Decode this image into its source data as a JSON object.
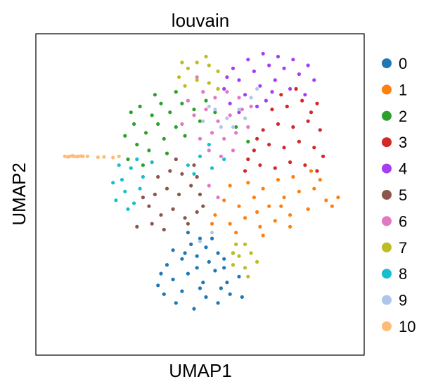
{
  "chart_data": {
    "type": "scatter",
    "title": "louvain",
    "xlabel": "UMAP1",
    "ylabel": "UMAP2",
    "xlim": [
      0,
      10
    ],
    "ylim": [
      0,
      10
    ],
    "grid": false,
    "show_ticks": false,
    "legend_position": "right",
    "series": [
      {
        "name": "0",
        "color": "#1f77b4",
        "points": [
          [
            3.8,
            1.6
          ],
          [
            4.2,
            1.3
          ],
          [
            4.8,
            1.1
          ],
          [
            5.2,
            1.5
          ],
          [
            5.6,
            1.3
          ],
          [
            6.0,
            1.6
          ],
          [
            3.6,
            1.9
          ],
          [
            4.1,
            2.1
          ],
          [
            4.6,
            2.3
          ],
          [
            5.1,
            2.0
          ],
          [
            5.5,
            2.4
          ],
          [
            5.9,
            2.0
          ],
          [
            6.3,
            2.2
          ],
          [
            3.9,
            2.6
          ],
          [
            4.4,
            2.8
          ],
          [
            4.9,
            2.9
          ],
          [
            5.3,
            2.7
          ],
          [
            5.8,
            2.8
          ],
          [
            4.1,
            3.1
          ],
          [
            4.7,
            3.3
          ],
          [
            5.2,
            3.2
          ],
          [
            5.6,
            3.0
          ],
          [
            6.1,
            3.0
          ],
          [
            4.4,
            1.7
          ],
          [
            5.0,
            1.8
          ],
          [
            5.7,
            1.8
          ],
          [
            4.9,
            2.5
          ],
          [
            4.5,
            3.0
          ],
          [
            5.4,
            3.5
          ],
          [
            5.0,
            3.5
          ],
          [
            4.6,
            3.7
          ],
          [
            5.8,
            2.5
          ],
          [
            3.7,
            2.3
          ],
          [
            6.4,
            1.5
          ]
        ]
      },
      {
        "name": "1",
        "color": "#ff7f0e",
        "points": [
          [
            5.5,
            4.3
          ],
          [
            6.0,
            4.0
          ],
          [
            6.5,
            4.2
          ],
          [
            7.0,
            3.9
          ],
          [
            7.5,
            4.1
          ],
          [
            8.0,
            4.3
          ],
          [
            8.6,
            4.5
          ],
          [
            9.2,
            4.8
          ],
          [
            5.8,
            4.8
          ],
          [
            6.3,
            4.6
          ],
          [
            6.8,
            4.9
          ],
          [
            7.3,
            4.6
          ],
          [
            7.8,
            4.9
          ],
          [
            8.3,
            5.1
          ],
          [
            8.8,
            5.2
          ],
          [
            9.4,
            4.6
          ],
          [
            6.0,
            5.3
          ],
          [
            6.6,
            5.4
          ],
          [
            7.1,
            5.2
          ],
          [
            7.6,
            5.5
          ],
          [
            8.1,
            5.6
          ],
          [
            8.7,
            5.8
          ],
          [
            9.0,
            5.5
          ],
          [
            5.4,
            4.0
          ],
          [
            6.2,
            3.7
          ],
          [
            7.1,
            3.6
          ],
          [
            8.0,
            3.9
          ],
          [
            9.6,
            4.9
          ],
          [
            6.9,
            4.4
          ],
          [
            7.7,
            4.6
          ]
        ]
      },
      {
        "name": "2",
        "color": "#2ca02c",
        "points": [
          [
            2.6,
            6.2
          ],
          [
            2.9,
            6.7
          ],
          [
            3.2,
            7.1
          ],
          [
            2.8,
            7.4
          ],
          [
            3.4,
            7.7
          ],
          [
            3.0,
            8.0
          ],
          [
            3.7,
            8.1
          ],
          [
            3.3,
            6.5
          ],
          [
            3.8,
            6.9
          ],
          [
            4.2,
            7.3
          ],
          [
            3.6,
            7.4
          ],
          [
            4.0,
            7.8
          ],
          [
            4.4,
            8.1
          ],
          [
            4.8,
            7.9
          ],
          [
            5.2,
            8.2
          ],
          [
            5.5,
            7.8
          ],
          [
            2.5,
            7.0
          ],
          [
            3.1,
            6.0
          ],
          [
            4.5,
            7.0
          ],
          [
            5.0,
            7.5
          ],
          [
            3.5,
            8.4
          ],
          [
            4.2,
            8.5
          ],
          [
            6.6,
            6.8
          ],
          [
            6.2,
            7.3
          ],
          [
            2.7,
            7.8
          ],
          [
            3.9,
            6.4
          ]
        ]
      },
      {
        "name": "3",
        "color": "#d62728",
        "points": [
          [
            6.5,
            5.8
          ],
          [
            7.0,
            6.0
          ],
          [
            7.5,
            5.9
          ],
          [
            8.0,
            6.1
          ],
          [
            8.5,
            6.0
          ],
          [
            8.9,
            5.8
          ],
          [
            6.8,
            6.5
          ],
          [
            7.3,
            6.7
          ],
          [
            7.8,
            6.6
          ],
          [
            8.3,
            6.8
          ],
          [
            8.8,
            6.6
          ],
          [
            7.1,
            7.2
          ],
          [
            7.6,
            7.4
          ],
          [
            8.1,
            7.3
          ],
          [
            8.6,
            7.5
          ],
          [
            9.0,
            7.2
          ],
          [
            7.4,
            7.9
          ],
          [
            7.9,
            8.0
          ],
          [
            8.4,
            8.2
          ],
          [
            8.7,
            7.8
          ],
          [
            6.6,
            6.2
          ],
          [
            9.1,
            6.3
          ],
          [
            7.7,
            8.4
          ],
          [
            8.2,
            8.6
          ],
          [
            8.9,
            8.1
          ],
          [
            6.9,
            6.9
          ]
        ]
      },
      {
        "name": "4",
        "color": "#a53ef2",
        "points": [
          [
            5.8,
            8.6
          ],
          [
            6.3,
            8.9
          ],
          [
            6.8,
            9.2
          ],
          [
            7.3,
            9.4
          ],
          [
            7.8,
            9.3
          ],
          [
            8.3,
            9.1
          ],
          [
            8.8,
            8.9
          ],
          [
            6.1,
            9.3
          ],
          [
            6.6,
            9.6
          ],
          [
            7.1,
            9.8
          ],
          [
            7.6,
            9.7
          ],
          [
            8.1,
            9.6
          ],
          [
            8.6,
            9.4
          ],
          [
            6.0,
            8.1
          ],
          [
            6.5,
            8.4
          ],
          [
            7.0,
            8.7
          ],
          [
            7.5,
            8.9
          ],
          [
            8.0,
            8.6
          ],
          [
            8.5,
            8.4
          ],
          [
            6.3,
            7.8
          ],
          [
            7.2,
            8.2
          ],
          [
            5.9,
            9.0
          ],
          [
            7.4,
            8.5
          ],
          [
            6.9,
            8.0
          ]
        ]
      },
      {
        "name": "5",
        "color": "#8c564b",
        "points": [
          [
            3.3,
            4.6
          ],
          [
            3.7,
            4.3
          ],
          [
            4.1,
            4.5
          ],
          [
            4.5,
            4.2
          ],
          [
            4.9,
            4.4
          ],
          [
            3.5,
            5.0
          ],
          [
            3.9,
            5.2
          ],
          [
            4.3,
            5.0
          ],
          [
            4.7,
            5.3
          ],
          [
            5.0,
            5.0
          ],
          [
            3.6,
            5.6
          ],
          [
            4.0,
            5.8
          ],
          [
            4.4,
            5.7
          ],
          [
            4.8,
            6.0
          ],
          [
            3.1,
            4.9
          ],
          [
            2.9,
            3.9
          ],
          [
            3.4,
            4.0
          ],
          [
            4.6,
            4.0
          ],
          [
            5.1,
            4.6
          ],
          [
            4.2,
            6.2
          ],
          [
            3.8,
            3.8
          ],
          [
            4.9,
            5.6
          ]
        ]
      },
      {
        "name": "6",
        "color": "#e377c2",
        "points": [
          [
            4.4,
            7.4
          ],
          [
            4.8,
            7.7
          ],
          [
            5.2,
            7.9
          ],
          [
            5.6,
            7.5
          ],
          [
            6.0,
            7.7
          ],
          [
            6.4,
            7.9
          ],
          [
            4.6,
            8.2
          ],
          [
            5.1,
            8.5
          ],
          [
            5.5,
            8.3
          ],
          [
            5.9,
            8.5
          ],
          [
            6.3,
            8.3
          ],
          [
            6.7,
            8.0
          ],
          [
            5.0,
            6.9
          ],
          [
            5.4,
            7.1
          ],
          [
            5.8,
            6.9
          ],
          [
            6.2,
            7.1
          ],
          [
            6.6,
            7.3
          ],
          [
            5.3,
            6.5
          ],
          [
            5.7,
            6.3
          ],
          [
            6.1,
            6.5
          ],
          [
            4.9,
            9.0
          ],
          [
            5.6,
            4.9
          ],
          [
            5.3,
            5.3
          ]
        ]
      },
      {
        "name": "7",
        "color": "#bcbd22",
        "points": [
          [
            4.3,
            9.0
          ],
          [
            4.6,
            9.3
          ],
          [
            4.9,
            9.5
          ],
          [
            5.3,
            9.4
          ],
          [
            5.6,
            9.2
          ],
          [
            4.5,
            8.7
          ],
          [
            4.9,
            8.9
          ],
          [
            5.3,
            8.8
          ],
          [
            5.6,
            8.6
          ],
          [
            5.2,
            9.7
          ],
          [
            4.4,
            9.5
          ],
          [
            6.1,
            2.6
          ],
          [
            6.5,
            2.5
          ],
          [
            6.9,
            2.7
          ],
          [
            6.3,
            2.9
          ],
          [
            6.7,
            3.0
          ],
          [
            6.5,
            3.3
          ],
          [
            6.1,
            3.0
          ],
          [
            6.2,
            3.3
          ],
          [
            6.6,
            2.2
          ]
        ]
      },
      {
        "name": "8",
        "color": "#17becf",
        "points": [
          [
            2.2,
            4.8
          ],
          [
            2.5,
            5.1
          ],
          [
            2.8,
            4.7
          ],
          [
            2.4,
            5.5
          ],
          [
            2.7,
            5.9
          ],
          [
            3.1,
            5.6
          ],
          [
            2.3,
            6.0
          ],
          [
            2.6,
            4.5
          ],
          [
            3.0,
            5.2
          ],
          [
            2.1,
            5.4
          ],
          [
            4.6,
            6.0
          ],
          [
            5.0,
            6.3
          ],
          [
            5.4,
            5.9
          ],
          [
            5.8,
            6.2
          ],
          [
            4.8,
            5.7
          ],
          [
            5.3,
            6.7
          ],
          [
            3.4,
            6.1
          ],
          [
            2.9,
            6.2
          ]
        ]
      },
      {
        "name": "9",
        "color": "#aec7e8",
        "points": [
          [
            5.1,
            7.5
          ],
          [
            5.5,
            7.9
          ],
          [
            5.9,
            7.6
          ],
          [
            6.3,
            7.9
          ],
          [
            6.7,
            8.3
          ],
          [
            5.3,
            8.0
          ],
          [
            5.7,
            7.3
          ],
          [
            6.1,
            7.3
          ],
          [
            6.5,
            7.6
          ],
          [
            6.9,
            8.6
          ],
          [
            5.0,
            3.4
          ],
          [
            5.4,
            3.7
          ]
        ]
      },
      {
        "name": "10",
        "color": "#ffbb78",
        "points": [
          [
            0.5,
            6.3
          ],
          [
            0.65,
            6.3
          ],
          [
            0.8,
            6.3
          ],
          [
            0.95,
            6.3
          ],
          [
            1.1,
            6.3
          ],
          [
            1.25,
            6.3
          ],
          [
            0.6,
            6.28
          ],
          [
            0.75,
            6.32
          ],
          [
            0.9,
            6.29
          ],
          [
            1.05,
            6.31
          ],
          [
            1.6,
            6.27
          ],
          [
            1.8,
            6.28
          ],
          [
            2.1,
            6.26
          ],
          [
            2.3,
            6.3
          ]
        ]
      }
    ]
  }
}
